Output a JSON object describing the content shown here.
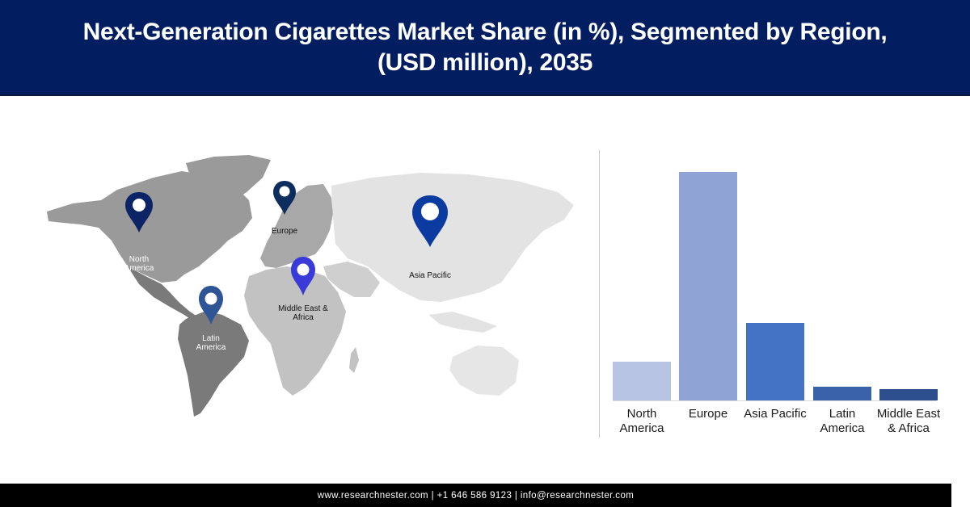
{
  "header": {
    "title": "Next-Generation Cigarettes Market Share (in %), Segmented by Region, (USD million), 2035",
    "background": "#021e60"
  },
  "map": {
    "pins": [
      {
        "label": "North America",
        "line1": "North",
        "line2": "America",
        "color": "#0c2466"
      },
      {
        "label": "Europe",
        "line1": "Europe",
        "line2": "",
        "color": "#0c2d5e"
      },
      {
        "label": "Asia Pacific",
        "line1": "Asia Pacific",
        "line2": "",
        "color": "#0b3aa0"
      },
      {
        "label": "Middle East & Africa",
        "line1": "Middle East &",
        "line2": "Africa",
        "color": "#3a3ad8"
      },
      {
        "label": "Latin America",
        "line1": "Latin",
        "line2": "America",
        "color": "#2e5596"
      }
    ]
  },
  "chart_data": {
    "type": "bar",
    "title": "Next-Generation Cigarettes Market Share (in %), Segmented by Region, (USD million), 2035",
    "categories": [
      "North America",
      "Europe",
      "Asia Pacific",
      "Latin America",
      "Middle East & Africa"
    ],
    "values": [
      17,
      100,
      34,
      6,
      5
    ],
    "colors": [
      "#b8c4e4",
      "#8fa4d4",
      "#4472c4",
      "#3a62a8",
      "#2e4f8e"
    ],
    "xlabel": "",
    "ylabel": "",
    "ylim": [
      0,
      100
    ],
    "grid": false,
    "legend": "none",
    "note": "Relative bar heights (no axis ticks shown); Europe tallest"
  },
  "chart": {
    "labels": [
      {
        "line1": "North",
        "line2": "America"
      },
      {
        "line1": "Europe",
        "line2": ""
      },
      {
        "line1": "Asia Pacific",
        "line2": ""
      },
      {
        "line1": "Latin",
        "line2": "America"
      },
      {
        "line1": "Middle East",
        "line2": "& Africa"
      }
    ]
  },
  "footer": {
    "text": "www.researchnester.com | +1 646 586 9123 | info@researchnester.com"
  }
}
